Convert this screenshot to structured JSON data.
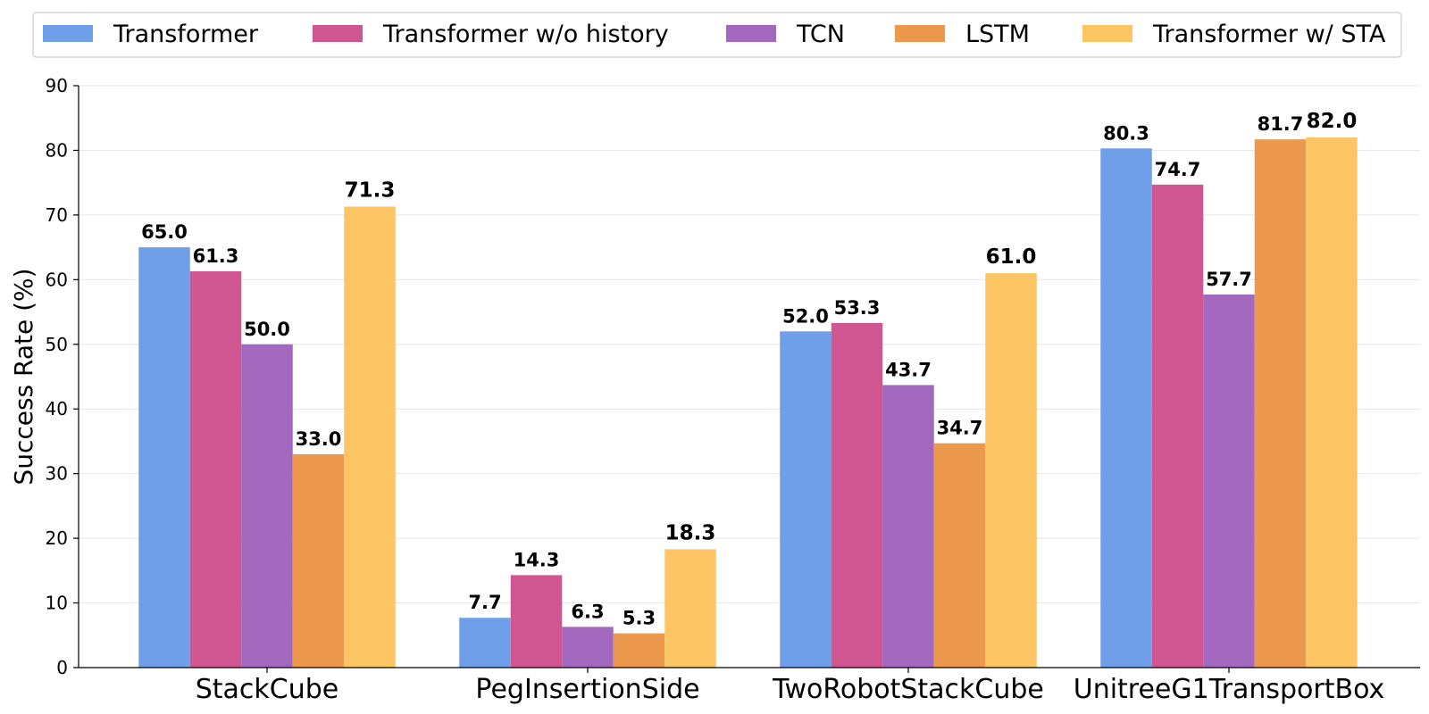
{
  "chart_data": {
    "type": "bar",
    "title": "",
    "xlabel": "",
    "ylabel": "Success Rate (%)",
    "ylim": [
      0,
      90
    ],
    "yticks": [
      0,
      10,
      20,
      30,
      40,
      50,
      60,
      70,
      80,
      90
    ],
    "grid": "horizontal",
    "legend_position": "top",
    "categories": [
      "StackCube",
      "PegInsertionSide",
      "TwoRobotStackCube",
      "UnitreeG1TransportBox"
    ],
    "series": [
      {
        "name": "Transformer",
        "color": "#6F9FE8",
        "values": [
          65.0,
          7.7,
          52.0,
          80.3
        ],
        "labels": [
          "65.0",
          "7.7",
          "52.0",
          "80.3"
        ]
      },
      {
        "name": "Transformer w/o history",
        "color": "#CF5690",
        "values": [
          61.3,
          14.3,
          53.3,
          74.7
        ],
        "labels": [
          "61.3",
          "14.3",
          "53.3",
          "74.7"
        ]
      },
      {
        "name": "TCN",
        "color": "#A268BE",
        "values": [
          50.0,
          6.3,
          43.7,
          57.7
        ],
        "labels": [
          "50.0",
          "6.3",
          "43.7",
          "57.7"
        ]
      },
      {
        "name": "LSTM",
        "color": "#EC994D",
        "values": [
          33.0,
          5.3,
          34.7,
          81.7
        ],
        "labels": [
          "33.0",
          "5.3",
          "34.7",
          "81.7"
        ]
      },
      {
        "name": "Transformer w/ STA",
        "color": "#FDC563",
        "values": [
          71.3,
          18.3,
          61.0,
          82.0
        ],
        "labels": [
          "71.3",
          "18.3",
          "61.0",
          "82.0"
        ],
        "emphasized": true
      }
    ]
  }
}
